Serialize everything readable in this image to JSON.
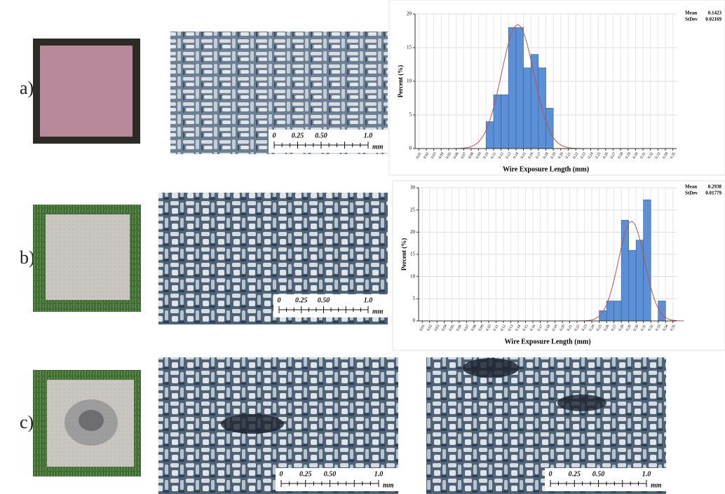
{
  "panels": [
    "a)",
    "b)",
    "c)"
  ],
  "scale_bar": {
    "labels": [
      "0",
      "0.25",
      "0.50",
      "1.0"
    ],
    "unit": "mm"
  },
  "chart_data": [
    {
      "type": "histogram",
      "x_label": "Wire Exposure Length (mm)",
      "y_label": "Percent (%)",
      "mean_label": "Mean",
      "mean": 0.1423,
      "stdev_label": "StDev",
      "stdev": 0.02169,
      "bins": [
        0.1,
        0.11,
        0.12,
        0.13,
        0.14,
        0.15,
        0.16,
        0.17,
        0.18,
        0.19
      ],
      "values": [
        4,
        8,
        8,
        18,
        18,
        12,
        14,
        12,
        6
      ],
      "color": "#5b8fd6",
      "curve_color": "#c0504d",
      "grid": true,
      "xlim": [
        0.005,
        0.355
      ],
      "ylim": [
        0,
        20
      ],
      "yticks": [
        0,
        5,
        10,
        15,
        20
      ],
      "xticks": [
        0.01,
        0.02,
        0.03,
        0.04,
        0.05,
        0.06,
        0.07,
        0.08,
        0.09,
        {
          "value": 0.1,
          "label": "0.10"
        },
        0.11,
        0.12,
        0.13,
        0.14,
        0.15,
        0.16,
        0.17,
        0.18,
        0.19,
        {
          "value": 0.2,
          "label": "0.20"
        },
        0.21,
        0.22,
        0.23,
        0.24,
        0.25,
        0.26,
        0.27,
        0.28,
        0.29,
        {
          "value": 0.3,
          "label": "0.30"
        },
        0.31,
        0.32,
        0.33,
        0.34,
        0.35
      ]
    },
    {
      "type": "histogram",
      "x_label": "Wire Exposure Length (mm)",
      "y_label": "Percent (%)",
      "mean_label": "Mean",
      "mean": 0.2938,
      "stdev_label": "StDev",
      "stdev": 0.01779,
      "bins": [
        0.25,
        0.26,
        0.27,
        0.28,
        0.29,
        0.3,
        0.31,
        0.32,
        0.33,
        0.34
      ],
      "values": [
        2.3,
        4.5,
        4.5,
        22.7,
        15.9,
        18.2,
        27.3,
        0,
        4.5
      ],
      "color": "#5b8fd6",
      "curve_color": "#c0504d",
      "grid": true,
      "xlim": [
        0.005,
        0.355
      ],
      "ylim": [
        0,
        30
      ],
      "yticks": [
        0,
        5,
        10,
        15,
        20,
        25,
        30
      ],
      "xticks": [
        0.01,
        0.02,
        0.03,
        0.04,
        0.05,
        0.06,
        0.07,
        0.08,
        0.09,
        {
          "value": 0.1,
          "label": "0.10"
        },
        0.11,
        0.12,
        0.13,
        0.14,
        0.15,
        0.16,
        0.17,
        0.18,
        0.19,
        {
          "value": 0.2,
          "label": "0.20"
        },
        0.21,
        0.22,
        0.23,
        0.24,
        0.25,
        0.26,
        0.27,
        0.28,
        0.29,
        {
          "value": 0.3,
          "label": "0.30"
        },
        0.31,
        0.32,
        0.33,
        0.34,
        0.35
      ]
    }
  ]
}
